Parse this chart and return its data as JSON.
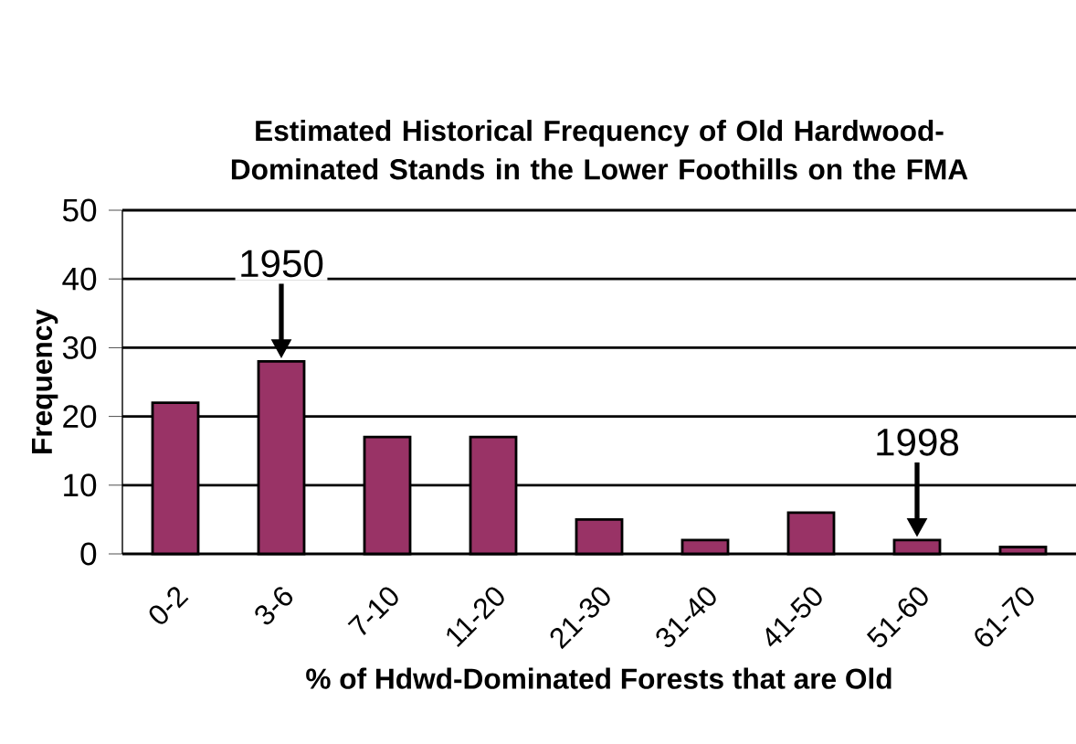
{
  "chart_data": {
    "type": "bar",
    "title": "Estimated Historical Frequency of Old Hardwood-Dominated Stands in the Lower Foothills on the FMA",
    "xlabel": "% of Hdwd-Dominated Forests that are Old",
    "ylabel": "Frequency",
    "categories": [
      "0-2",
      "3-6",
      "7-10",
      "11-20",
      "21-30",
      "31-40",
      "41-50",
      "51-60",
      "61-70"
    ],
    "values": [
      22,
      28,
      17,
      17,
      5,
      2,
      6,
      2,
      1
    ],
    "color": "#993366",
    "ylim": [
      0,
      50
    ],
    "yticks": [
      0,
      10,
      20,
      30,
      40,
      50
    ],
    "grid": "y",
    "annotations": [
      {
        "text": "1950",
        "x": "3-6",
        "y": 28
      },
      {
        "text": "1998",
        "x": "51-60",
        "y": 2
      }
    ]
  }
}
